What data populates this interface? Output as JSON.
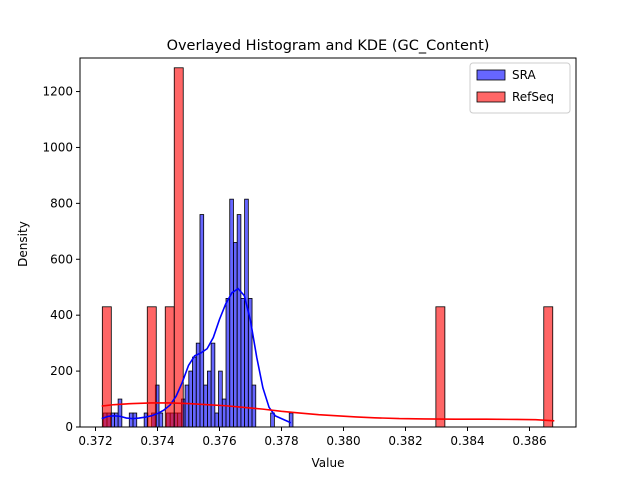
{
  "chart_data": {
    "type": "histogram",
    "title": "Overlayed Histogram and KDE (GC_Content)",
    "xlabel": "Value",
    "ylabel": "Density",
    "xlim": [
      0.3715,
      0.3875
    ],
    "ylim": [
      0,
      1320
    ],
    "x_ticks": [
      0.372,
      0.374,
      0.376,
      0.378,
      0.38,
      0.382,
      0.384,
      0.386
    ],
    "x_tick_labels": [
      "0.372",
      "0.374",
      "0.376",
      "0.378",
      "0.380",
      "0.382",
      "0.384",
      "0.386"
    ],
    "y_ticks": [
      0,
      200,
      400,
      600,
      800,
      1000,
      1200
    ],
    "y_tick_labels": [
      "0",
      "200",
      "400",
      "600",
      "800",
      "1000",
      "1200"
    ],
    "legend": {
      "placement": "top-right"
    },
    "series": [
      {
        "name": "SRA",
        "color": "#0000ff",
        "bin_width": 0.00012,
        "bins": [
          [
            0.37225,
            50
          ],
          [
            0.37237,
            50
          ],
          [
            0.37249,
            50
          ],
          [
            0.37261,
            50
          ],
          [
            0.37273,
            100
          ],
          [
            0.37309,
            50
          ],
          [
            0.37321,
            50
          ],
          [
            0.37357,
            50
          ],
          [
            0.37381,
            50
          ],
          [
            0.37393,
            150
          ],
          [
            0.37405,
            50
          ],
          [
            0.37429,
            50
          ],
          [
            0.37441,
            50
          ],
          [
            0.37453,
            50
          ],
          [
            0.37465,
            50
          ],
          [
            0.37477,
            100
          ],
          [
            0.37489,
            150
          ],
          [
            0.37501,
            200
          ],
          [
            0.37513,
            250
          ],
          [
            0.37525,
            300
          ],
          [
            0.37537,
            760
          ],
          [
            0.37549,
            150
          ],
          [
            0.37561,
            200
          ],
          [
            0.37573,
            300
          ],
          [
            0.37585,
            50
          ],
          [
            0.37597,
            200
          ],
          [
            0.37609,
            100
          ],
          [
            0.37621,
            460
          ],
          [
            0.37633,
            815
          ],
          [
            0.37645,
            660
          ],
          [
            0.37657,
            760
          ],
          [
            0.37669,
            460
          ],
          [
            0.37681,
            815
          ],
          [
            0.37693,
            460
          ],
          [
            0.37705,
            150
          ],
          [
            0.37765,
            50
          ],
          [
            0.37825,
            50
          ]
        ],
        "kde": [
          [
            0.3722,
            30
          ],
          [
            0.3724,
            38
          ],
          [
            0.3726,
            40
          ],
          [
            0.3728,
            38
          ],
          [
            0.373,
            32
          ],
          [
            0.3732,
            30
          ],
          [
            0.3734,
            32
          ],
          [
            0.3736,
            35
          ],
          [
            0.3738,
            40
          ],
          [
            0.374,
            48
          ],
          [
            0.3742,
            60
          ],
          [
            0.3744,
            78
          ],
          [
            0.3746,
            110
          ],
          [
            0.3748,
            160
          ],
          [
            0.375,
            220
          ],
          [
            0.3752,
            255
          ],
          [
            0.3754,
            265
          ],
          [
            0.3756,
            280
          ],
          [
            0.3758,
            320
          ],
          [
            0.376,
            385
          ],
          [
            0.3762,
            440
          ],
          [
            0.3764,
            480
          ],
          [
            0.3766,
            495
          ],
          [
            0.3768,
            470
          ],
          [
            0.377,
            380
          ],
          [
            0.3772,
            250
          ],
          [
            0.3774,
            140
          ],
          [
            0.3776,
            70
          ],
          [
            0.3778,
            40
          ],
          [
            0.378,
            30
          ],
          [
            0.3782,
            20
          ],
          [
            0.3783,
            15
          ]
        ]
      },
      {
        "name": "RefSeq",
        "color": "#ff0000",
        "bin_width": 0.00029,
        "bins": [
          [
            0.37222,
            430
          ],
          [
            0.37367,
            430
          ],
          [
            0.37425,
            430
          ],
          [
            0.37454,
            1285
          ],
          [
            0.38298,
            430
          ],
          [
            0.38646,
            430
          ]
        ],
        "kde": [
          [
            0.3722,
            75
          ],
          [
            0.3726,
            80
          ],
          [
            0.3732,
            84
          ],
          [
            0.3738,
            86
          ],
          [
            0.3744,
            86
          ],
          [
            0.375,
            84
          ],
          [
            0.3756,
            80
          ],
          [
            0.3762,
            76
          ],
          [
            0.3768,
            70
          ],
          [
            0.3774,
            64
          ],
          [
            0.378,
            56
          ],
          [
            0.3786,
            50
          ],
          [
            0.3792,
            44
          ],
          [
            0.3798,
            40
          ],
          [
            0.3804,
            36
          ],
          [
            0.381,
            33
          ],
          [
            0.3818,
            30
          ],
          [
            0.3826,
            29
          ],
          [
            0.3836,
            28
          ],
          [
            0.3846,
            28
          ],
          [
            0.3856,
            27
          ],
          [
            0.3862,
            26
          ],
          [
            0.3868,
            22
          ]
        ]
      }
    ]
  }
}
